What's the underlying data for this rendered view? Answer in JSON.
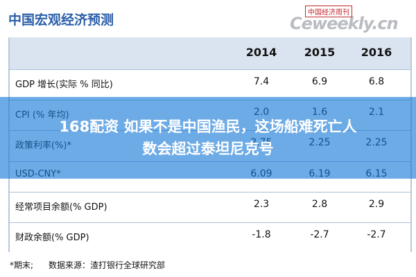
{
  "title": "中国宏观经济预测",
  "logo": {
    "badge": "中国经济周刊",
    "site": "Ceweekly.cn"
  },
  "table": {
    "header": [
      "2014",
      "2015",
      "2016"
    ],
    "rows": [
      [
        "GDP 增长(实际 % 同比)",
        "7.4",
        "6.9",
        "6.8"
      ],
      [
        "CPI (% 年均)",
        "2.0",
        "1.6",
        "2.1"
      ],
      [
        "政策利率(%)*",
        "2.75",
        "2.25",
        "2.25"
      ],
      [
        "USD-CNY*",
        "6.09",
        "6.19",
        "6.15"
      ],
      [
        "经常项目余额(% GDP)",
        "2.3",
        "2.8",
        "2.9"
      ],
      [
        "财政余额(% GDP)",
        "-1.8",
        "-2.7",
        "-2.7"
      ]
    ]
  },
  "footnote": [
    "*期末;",
    "数据来源：渣打银行全球研究部"
  ],
  "overlay": "168配资 如果不是中国渔民，这场船难死亡人数会超过泰坦尼克号"
}
